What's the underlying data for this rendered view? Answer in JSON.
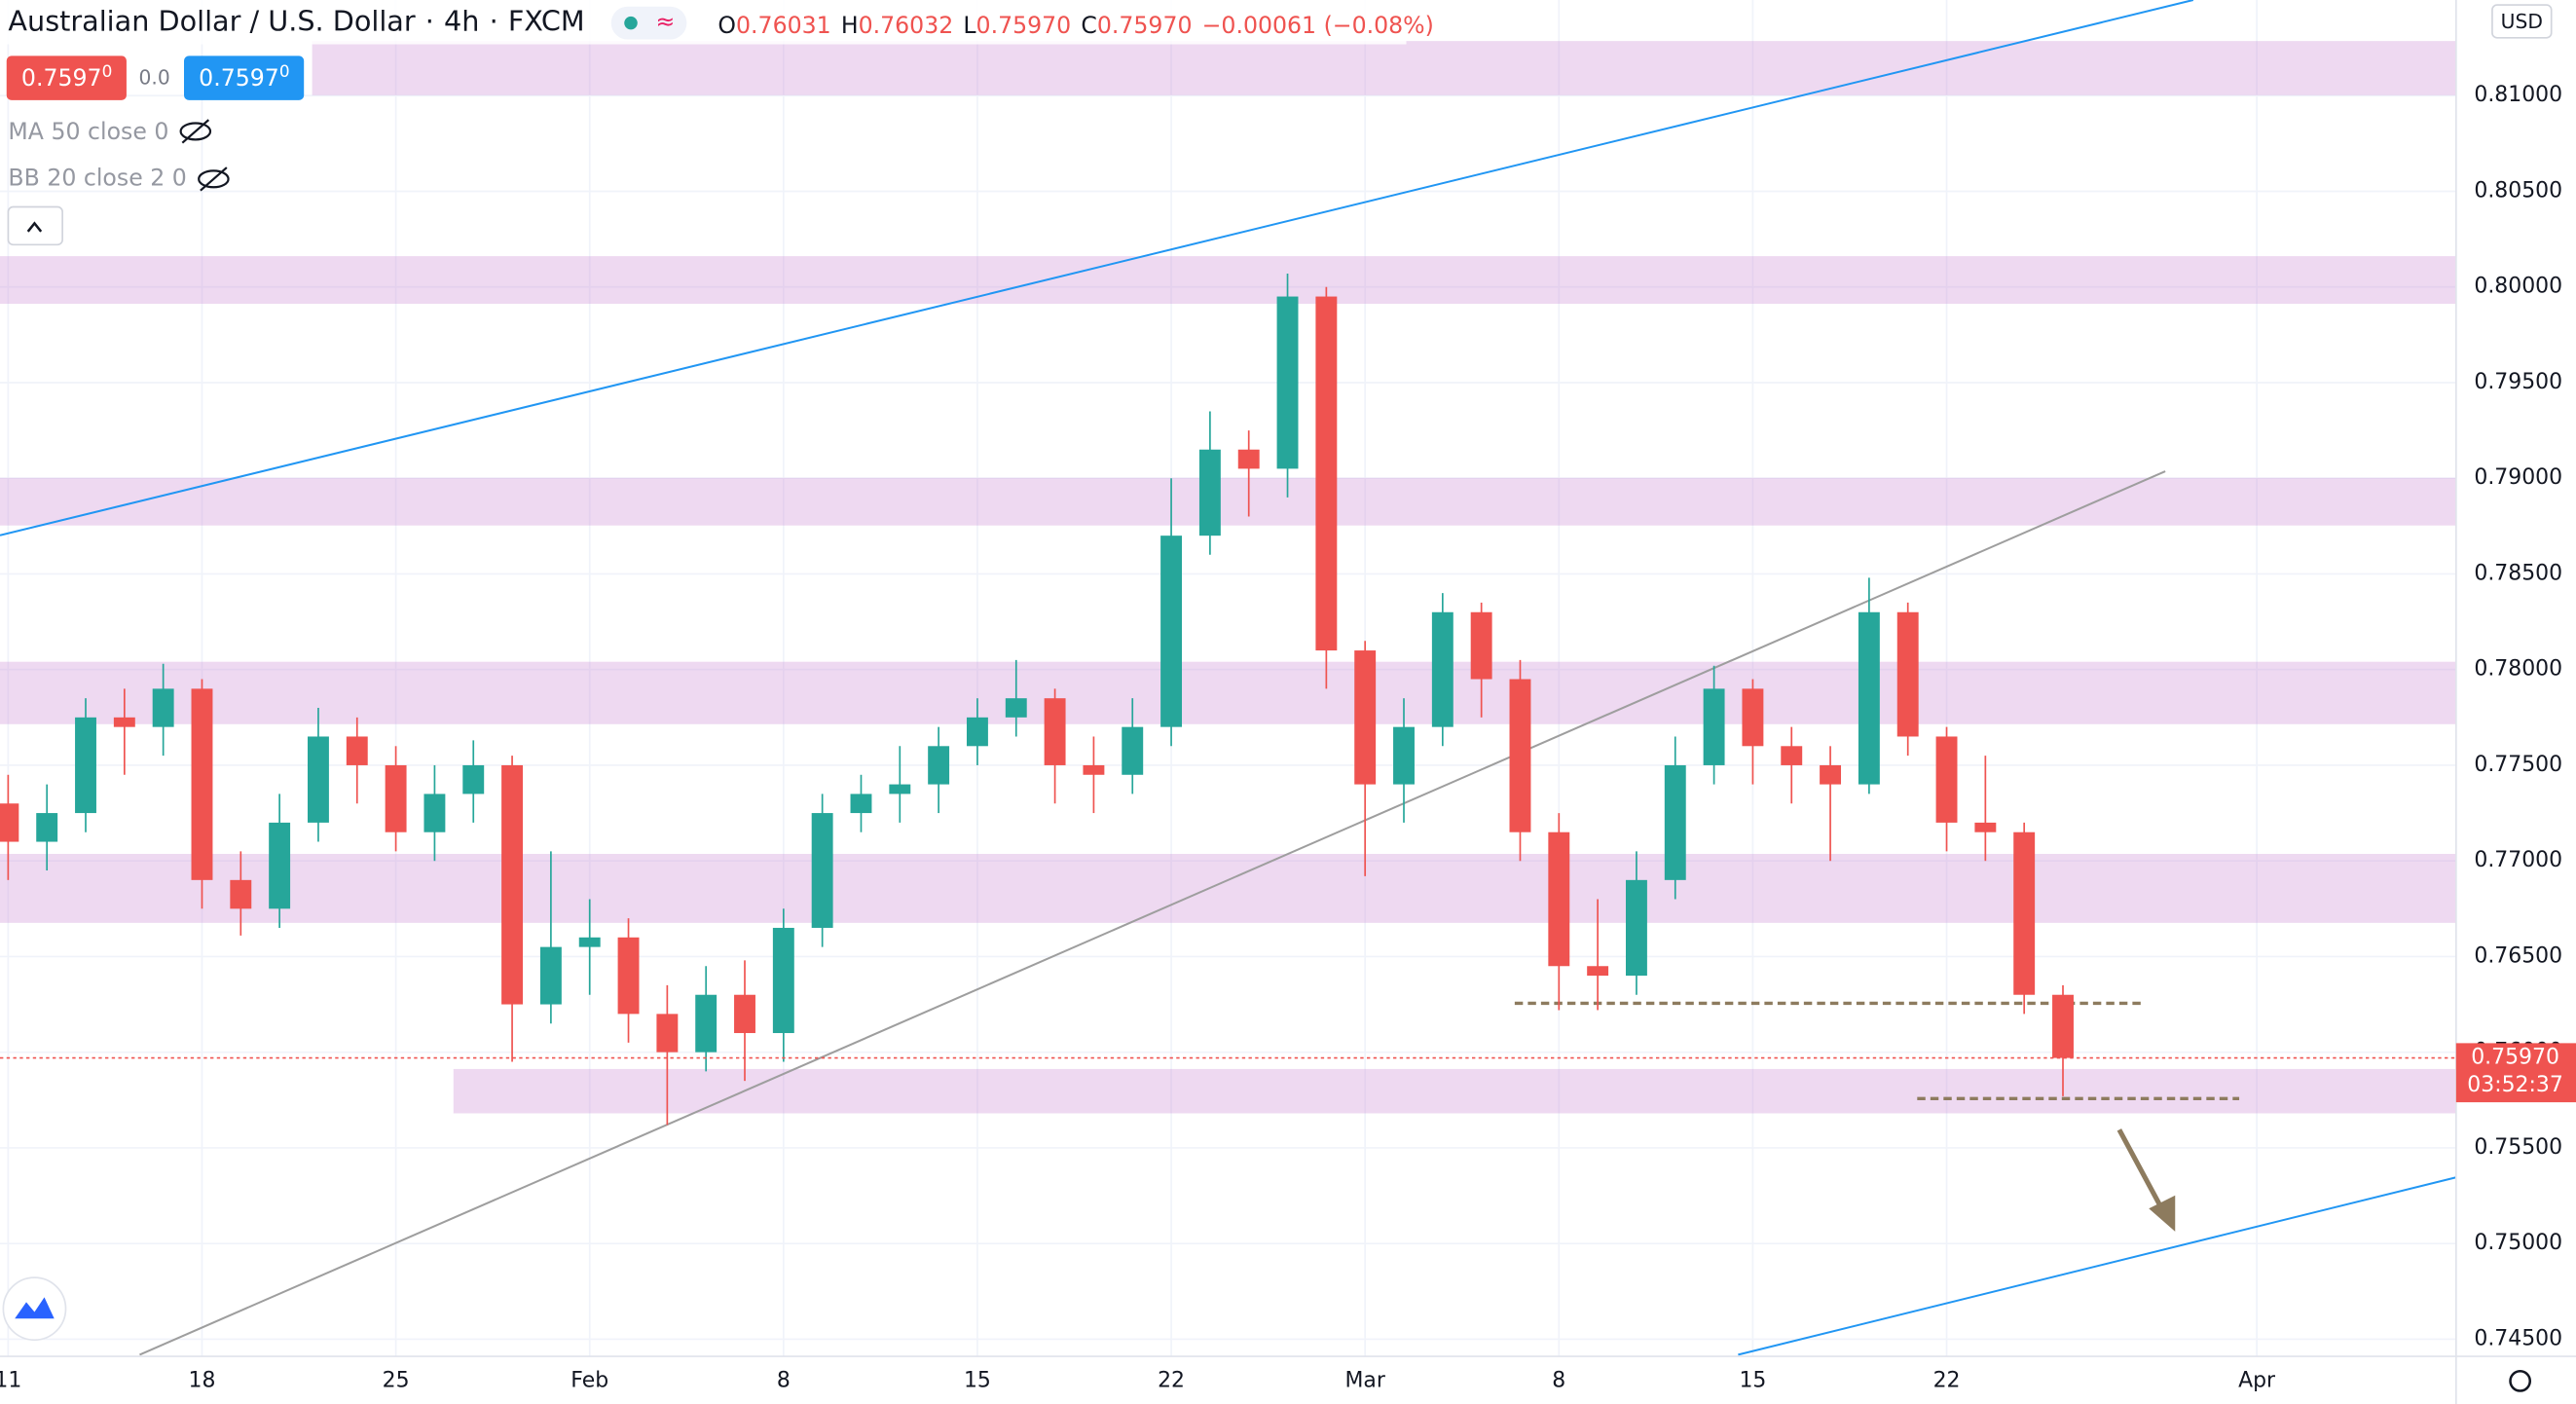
{
  "header": {
    "title": "Australian Dollar / U.S. Dollar",
    "interval": "4h",
    "source": "FXCM",
    "open_label": "O",
    "open": 0.76031,
    "high_label": "H",
    "high": 0.76032,
    "low_label": "L",
    "low": "0.75970",
    "close_label": "C",
    "close": "0.75970",
    "change": "−0.00061 (−0.08%)",
    "sell": "0.7597",
    "sell_pip": "0",
    "spread": "0.0",
    "buy": "0.7597",
    "buy_pip": "0",
    "currency": "USD",
    "indicators": [
      "MA 50 close 0",
      "BB 20 close 2 0"
    ]
  },
  "chart_data": {
    "type": "candlestick",
    "up_color": "#26a69a",
    "down_color": "#ef5350",
    "grid": true,
    "x": [
      0,
      1,
      2,
      3,
      4,
      5,
      6,
      7,
      8,
      9,
      10,
      11,
      12,
      13,
      14,
      15,
      16,
      17,
      18,
      19,
      20,
      21,
      22,
      23,
      24,
      25,
      26,
      27,
      28,
      29,
      30,
      31,
      32,
      33,
      34,
      35,
      36,
      37,
      38,
      39,
      40,
      41,
      42,
      43,
      44,
      45,
      46,
      47,
      48,
      49,
      50,
      51,
      52,
      53
    ],
    "open": [
      0.773,
      0.771,
      0.7725,
      0.7775,
      0.777,
      0.779,
      0.769,
      0.7675,
      0.772,
      0.7765,
      0.775,
      0.7715,
      0.7735,
      0.775,
      0.7625,
      0.7655,
      0.766,
      0.762,
      0.76,
      0.763,
      0.761,
      0.7665,
      0.7725,
      0.7735,
      0.774,
      0.776,
      0.7775,
      0.7785,
      0.775,
      0.7745,
      0.777,
      0.787,
      0.7915,
      0.7905,
      0.7995,
      0.781,
      0.774,
      0.777,
      0.783,
      0.7795,
      0.7715,
      0.7645,
      0.764,
      0.769,
      0.775,
      0.779,
      0.776,
      0.775,
      0.774,
      0.783,
      0.7765,
      0.772,
      0.7715,
      0.763
    ],
    "high": [
      0.7745,
      0.774,
      0.7785,
      0.779,
      0.7803,
      0.7795,
      0.7705,
      0.7735,
      0.778,
      0.7775,
      0.776,
      0.775,
      0.7763,
      0.7755,
      0.7705,
      0.768,
      0.767,
      0.7635,
      0.7645,
      0.7648,
      0.7675,
      0.7735,
      0.7745,
      0.776,
      0.777,
      0.7785,
      0.7805,
      0.779,
      0.7765,
      0.7785,
      0.79,
      0.7935,
      0.7925,
      0.8007,
      0.8,
      0.7815,
      0.7785,
      0.784,
      0.7835,
      0.7805,
      0.7725,
      0.768,
      0.7705,
      0.7765,
      0.7802,
      0.7795,
      0.777,
      0.776,
      0.7848,
      0.7835,
      0.777,
      0.7755,
      0.772,
      0.7635
    ],
    "low": [
      0.769,
      0.7695,
      0.7715,
      0.7745,
      0.7755,
      0.7675,
      0.7661,
      0.7665,
      0.771,
      0.773,
      0.7705,
      0.77,
      0.772,
      0.7595,
      0.7615,
      0.763,
      0.7605,
      0.7562,
      0.759,
      0.7585,
      0.7595,
      0.7655,
      0.7715,
      0.772,
      0.7725,
      0.775,
      0.7765,
      0.773,
      0.7725,
      0.7735,
      0.776,
      0.786,
      0.788,
      0.789,
      0.779,
      0.7692,
      0.772,
      0.776,
      0.7775,
      0.77,
      0.7622,
      0.7622,
      0.763,
      0.768,
      0.774,
      0.774,
      0.773,
      0.77,
      0.7735,
      0.7755,
      0.7705,
      0.77,
      0.762,
      0.7577
    ],
    "close": [
      0.771,
      0.7725,
      0.7775,
      0.777,
      0.779,
      0.769,
      0.7675,
      0.772,
      0.7765,
      0.775,
      0.7715,
      0.7735,
      0.775,
      0.7625,
      0.7655,
      0.766,
      0.762,
      0.76,
      0.763,
      0.761,
      0.7665,
      0.7725,
      0.7735,
      0.774,
      0.776,
      0.7775,
      0.7785,
      0.775,
      0.7745,
      0.777,
      0.787,
      0.7915,
      0.7905,
      0.7995,
      0.781,
      0.774,
      0.777,
      0.783,
      0.7795,
      0.7715,
      0.7645,
      0.764,
      0.769,
      0.775,
      0.779,
      0.776,
      0.775,
      0.774,
      0.783,
      0.7765,
      0.772,
      0.7715,
      0.763,
      0.7597
    ],
    "last_price_label": "0.75970",
    "countdown": "03:52:37",
    "xlim": [
      -0.21,
      63.14
    ],
    "xticks": [
      {
        "value": 0,
        "label": "11"
      },
      {
        "value": 5,
        "label": "18"
      },
      {
        "value": 10,
        "label": "25"
      },
      {
        "value": 15,
        "label": "Feb"
      },
      {
        "value": 20,
        "label": "8"
      },
      {
        "value": 25,
        "label": "15"
      },
      {
        "value": 30,
        "label": "22"
      },
      {
        "value": 35,
        "label": "Mar"
      },
      {
        "value": 40,
        "label": "8"
      },
      {
        "value": 45,
        "label": "15"
      },
      {
        "value": 50,
        "label": "22"
      },
      {
        "value": 58,
        "label": "Apr"
      }
    ],
    "ylim": [
      0.7441,
      0.815
    ],
    "yticks": [
      {
        "value": 0.745,
        "label": "0.74500"
      },
      {
        "value": 0.75,
        "label": "0.75000"
      },
      {
        "value": 0.755,
        "label": "0.75500"
      },
      {
        "value": 0.76,
        "label": "0.76000"
      },
      {
        "value": 0.765,
        "label": "0.76500"
      },
      {
        "value": 0.77,
        "label": "0.77000"
      },
      {
        "value": 0.775,
        "label": "0.77500"
      },
      {
        "value": 0.78,
        "label": "0.78000"
      },
      {
        "value": 0.785,
        "label": "0.78500"
      },
      {
        "value": 0.79,
        "label": "0.79000"
      },
      {
        "value": 0.795,
        "label": "0.79500"
      },
      {
        "value": 0.8,
        "label": "0.80000"
      },
      {
        "value": 0.805,
        "label": "0.80500"
      },
      {
        "value": 0.81,
        "label": "0.81000"
      }
    ]
  }
}
